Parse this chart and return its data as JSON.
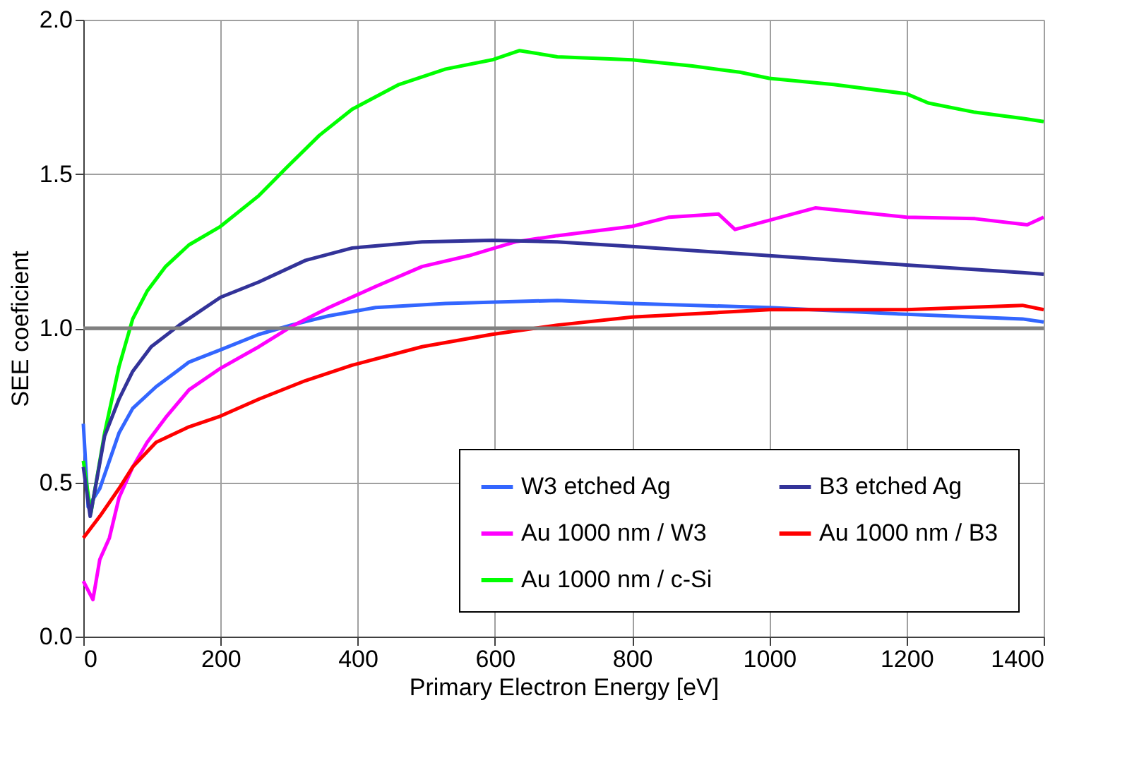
{
  "chart_data": {
    "type": "line",
    "xlabel": "Primary Electron Energy  [eV]",
    "ylabel": "SEE coeficient",
    "xlim": [
      0,
      1400
    ],
    "xticks": [
      0,
      200,
      400,
      600,
      800,
      1000,
      1200,
      1400
    ],
    "ylim": [
      0,
      2
    ],
    "yticks": [
      {
        "value": 0,
        "label": "0.0"
      },
      {
        "value": 0.5,
        "label": "0.5"
      },
      {
        "value": 1,
        "label": "1.0"
      },
      {
        "value": 1.5,
        "label": "1.5"
      },
      {
        "value": 2,
        "label": "2.0"
      }
    ],
    "grid": true,
    "legend": "bottom right",
    "marker": "none",
    "line_style": "solid",
    "ref_lines": [
      {
        "axis": "y",
        "value": 1,
        "color": "#808080"
      }
    ],
    "series": [
      {
        "name": "W3 etched Ag",
        "color": "#3366ff",
        "x": [
          0,
          7,
          24,
          52,
          72,
          106,
          154,
          200,
          256,
          303,
          358,
          426,
          528,
          691,
          800,
          1000,
          1200,
          1369,
          1400
        ],
        "values": [
          0.69,
          0.42,
          0.48,
          0.66,
          0.74,
          0.81,
          0.89,
          0.93,
          0.98,
          1.01,
          1.04,
          1.067,
          1.08,
          1.09,
          1.08,
          1.067,
          1.045,
          1.03,
          1.02
        ]
      },
      {
        "name": "Au 1000 nm / W3",
        "color": "#ff00ff",
        "x": [
          0,
          14,
          24,
          38,
          52,
          72,
          93,
          120,
          154,
          200,
          256,
          303,
          358,
          426,
          494,
          562,
          630,
          691,
          800,
          854,
          926,
          950,
          1000,
          1067,
          1200,
          1300,
          1376,
          1400
        ],
        "values": [
          0.18,
          0.12,
          0.25,
          0.32,
          0.45,
          0.55,
          0.63,
          0.71,
          0.8,
          0.87,
          0.94,
          1.005,
          1.067,
          1.135,
          1.2,
          1.235,
          1.28,
          1.3,
          1.33,
          1.36,
          1.37,
          1.32,
          1.35,
          1.39,
          1.36,
          1.355,
          1.335,
          1.36
        ]
      },
      {
        "name": "Au 1000 nm / c-Si",
        "color": "#00ff00",
        "x": [
          0,
          11,
          31,
          52,
          72,
          93,
          120,
          154,
          200,
          256,
          296,
          344,
          392,
          460,
          528,
          596,
          636,
          691,
          800,
          888,
          957,
          1000,
          1094,
          1200,
          1232,
          1300,
          1369,
          1400
        ],
        "values": [
          0.57,
          0.4,
          0.66,
          0.875,
          1.03,
          1.12,
          1.2,
          1.27,
          1.33,
          1.43,
          1.52,
          1.625,
          1.71,
          1.79,
          1.84,
          1.87,
          1.9,
          1.88,
          1.87,
          1.85,
          1.83,
          1.81,
          1.79,
          1.76,
          1.73,
          1.7,
          1.68,
          1.67
        ]
      },
      {
        "name": "B3 etched Ag",
        "color": "#333399",
        "x": [
          0,
          10,
          31,
          52,
          72,
          99,
          140,
          200,
          256,
          324,
          392,
          494,
          596,
          691,
          800,
          1000,
          1200,
          1369,
          1400
        ],
        "values": [
          0.55,
          0.39,
          0.65,
          0.77,
          0.86,
          0.94,
          1.01,
          1.1,
          1.15,
          1.22,
          1.26,
          1.28,
          1.285,
          1.28,
          1.265,
          1.235,
          1.205,
          1.18,
          1.175
        ]
      },
      {
        "name": "Au 1000 nm / B3",
        "color": "#ff0000",
        "x": [
          0,
          24,
          52,
          72,
          106,
          154,
          200,
          256,
          324,
          392,
          494,
          596,
          691,
          800,
          1000,
          1200,
          1369,
          1400
        ],
        "values": [
          0.32,
          0.39,
          0.48,
          0.55,
          0.63,
          0.68,
          0.715,
          0.77,
          0.83,
          0.88,
          0.94,
          0.98,
          1.01,
          1.036,
          1.06,
          1.06,
          1.074,
          1.06
        ]
      }
    ]
  }
}
